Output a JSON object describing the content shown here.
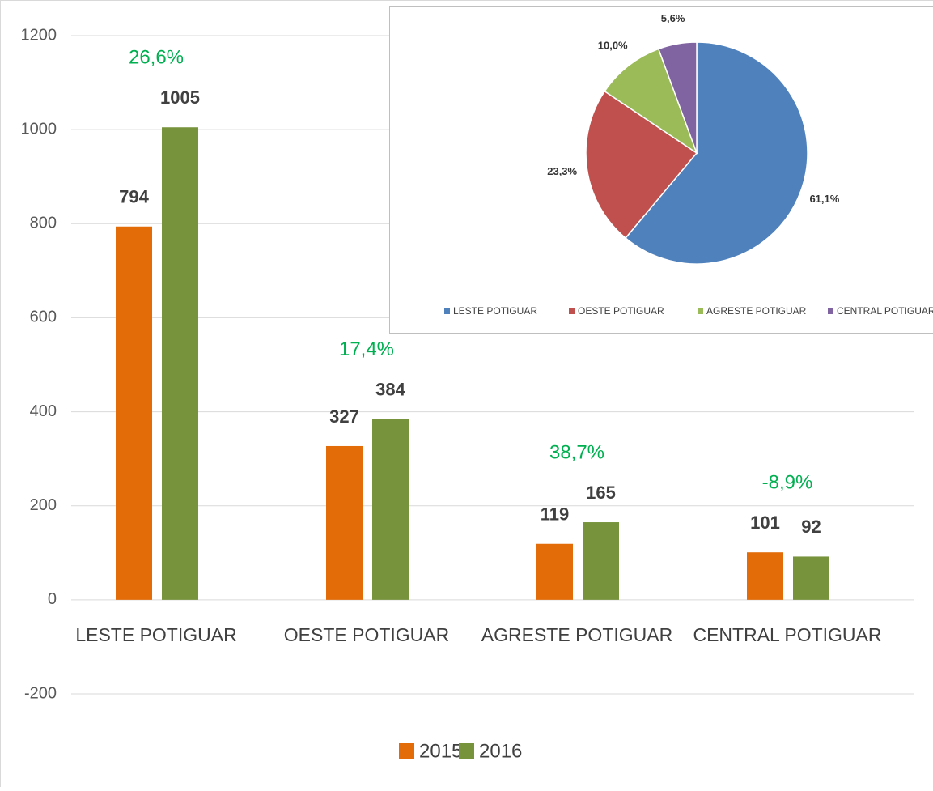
{
  "chart_data": [
    {
      "type": "bar",
      "categories": [
        "LESTE POTIGUAR",
        "OESTE POTIGUAR",
        "AGRESTE POTIGUAR",
        "CENTRAL POTIGUAR"
      ],
      "series": [
        {
          "name": "2015",
          "color": "#e36c09",
          "values": [
            794,
            327,
            119,
            101
          ]
        },
        {
          "name": "2016",
          "color": "#77933c",
          "values": [
            1005,
            384,
            165,
            92
          ]
        }
      ],
      "annotations": [
        "26,6%",
        "17,4%",
        "38,7%",
        "-8,9%"
      ],
      "ylim": [
        -200,
        1200
      ],
      "yticks": [
        -200,
        0,
        200,
        400,
        600,
        800,
        1000,
        1200
      ],
      "grid": true,
      "legend": "bottom"
    },
    {
      "type": "pie",
      "categories": [
        "LESTE POTIGUAR",
        "OESTE POTIGUAR",
        "AGRESTE POTIGUAR",
        "CENTRAL POTIGUAR"
      ],
      "values": [
        61.1,
        23.3,
        10.0,
        5.6
      ],
      "value_labels": [
        "61,1%",
        "23,3%",
        "10,0%",
        "5,6%"
      ],
      "colors": [
        "#4f81bd",
        "#c0504d",
        "#9bbb59",
        "#8064a2"
      ],
      "legend": "bottom"
    }
  ]
}
